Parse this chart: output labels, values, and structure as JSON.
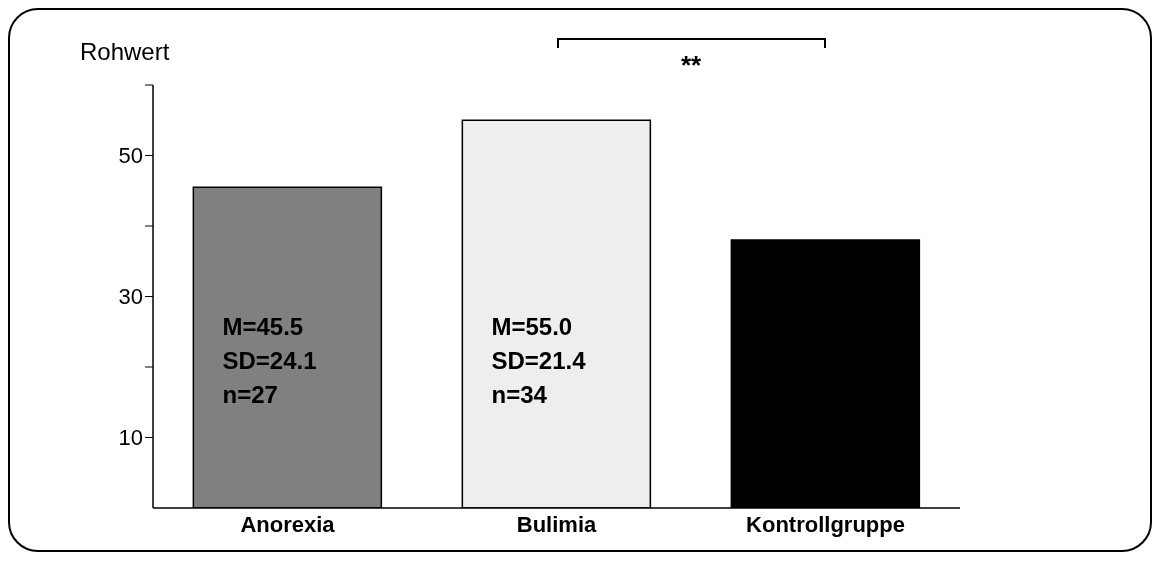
{
  "chart_data": {
    "type": "bar",
    "ylabel": "Rohwert",
    "categories": [
      "Anorexia",
      "Bulimia",
      "Kontrollgruppe"
    ],
    "values": [
      45.5,
      55.0,
      38.0
    ],
    "colors": [
      "#808080",
      "#eeeeee",
      "#000000"
    ],
    "ylim": [
      0,
      60
    ],
    "yticks": [
      10,
      {
        "value": 20,
        "label": null
      },
      30,
      {
        "value": 40,
        "label": null
      },
      50,
      {
        "value": 60,
        "label": null
      }
    ],
    "annotations": [
      "M=45.5\nSD=24.1\nn=27",
      "M=55.0\nSD=21.4\nn=34",
      "**"
    ]
  }
}
